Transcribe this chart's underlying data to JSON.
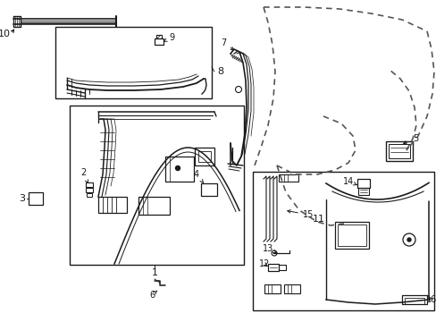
{
  "bg_color": "#ffffff",
  "line_color": "#1a1a1a",
  "dash_color": "#555555",
  "figsize": [
    4.89,
    3.6
  ],
  "dpi": 100
}
